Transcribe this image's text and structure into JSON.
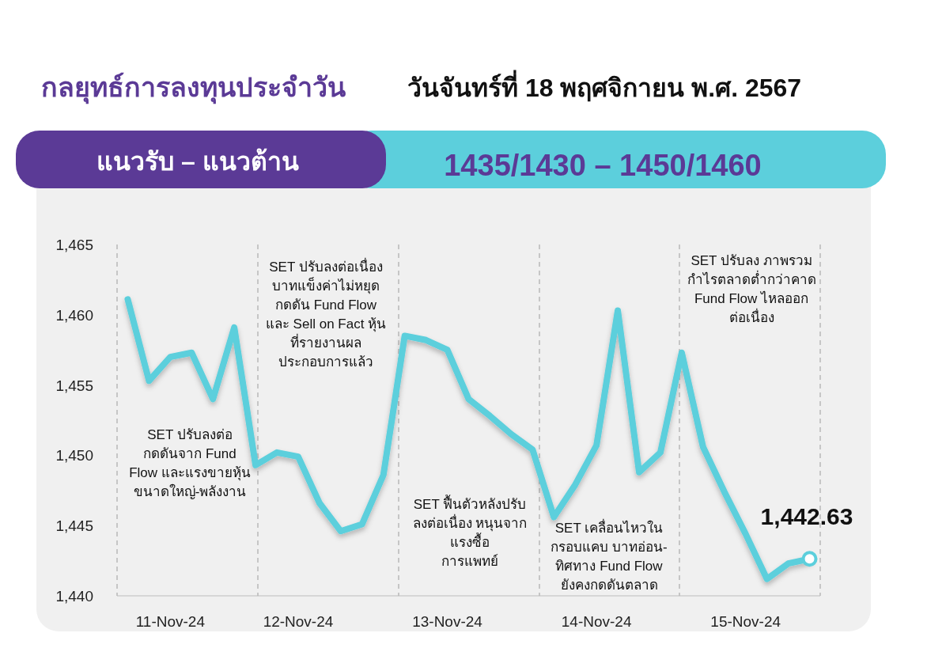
{
  "chart_data": {
    "type": "line",
    "title": "กลยุทธ์การลงทุนประจำวัน",
    "subtitle": "วันจันทร์ที่ 18 พฤศจิกายน พ.ศ. 2567",
    "categories": [
      null,
      null,
      "11-Nov-24",
      null,
      null,
      null,
      null,
      null,
      "12-Nov-24",
      null,
      null,
      null,
      null,
      null,
      null,
      "13-Nov-24",
      null,
      null,
      null,
      null,
      null,
      null,
      "14-Nov-24",
      null,
      null,
      null,
      null,
      null,
      null,
      "15-Nov-24",
      null,
      null,
      null
    ],
    "series": [
      {
        "color": "#5ccfdc",
        "values": [
          1461.1,
          1455.3,
          1457.0,
          1457.3,
          1454.0,
          1459.1,
          1449.3,
          1450.2,
          1449.9,
          1446.6,
          1444.6,
          1445.1,
          1448.6,
          1458.5,
          1458.2,
          1457.5,
          1454.0,
          1452.8,
          1451.5,
          1450.4,
          1445.6,
          1447.9,
          1450.7,
          1460.3,
          1448.8,
          1450.2,
          1457.3,
          1450.6,
          1447.4,
          1444.4,
          1441.2,
          1442.3,
          1442.63
        ]
      }
    ],
    "ylim": [
      1440,
      1465
    ],
    "yticks": [
      {
        "value": 1440,
        "label": "1,440"
      },
      {
        "value": 1445,
        "label": "1,445"
      },
      {
        "value": 1450,
        "label": "1,450"
      },
      {
        "value": 1455,
        "label": "1,455"
      },
      {
        "value": 1460,
        "label": "1,460"
      },
      {
        "value": 1465,
        "label": "1,465"
      }
    ],
    "grid": "x",
    "marker": "none",
    "line_style": "solid",
    "annotations": [
      "แนวรับ – แนวต้าน",
      "1435/1430 – 1450/1460",
      "SET ปรับลงต่อ\nกดดันจาก Fund\nFlow และแรงขายหุ้น\nขนาดใหญ่-พลังงาน",
      "SET ปรับลงต่อเนื่อง\nบาทแข็งค่าไม่หยุด\nกดดัน Fund Flow\nและ Sell on Fact หุ้น\nที่รายงานผล\nประกอบการแล้ว",
      "SET ฟื้นตัวหลังปรับ\nลงต่อเนื่อง หนุนจาก\nแรงซื้อ\nการแพทย์",
      "SET เคลื่อนไหวใน\nกรอบแคบ บาทอ่อน-\nทิศทาง Fund Flow\nยังคงกดดันตลาด",
      "SET ปรับลง ภาพรวม\nกำไรตลาดต่ำกว่าคาด\nFund Flow ไหลออก\nต่อเนื่อง",
      "1,442.63"
    ]
  }
}
